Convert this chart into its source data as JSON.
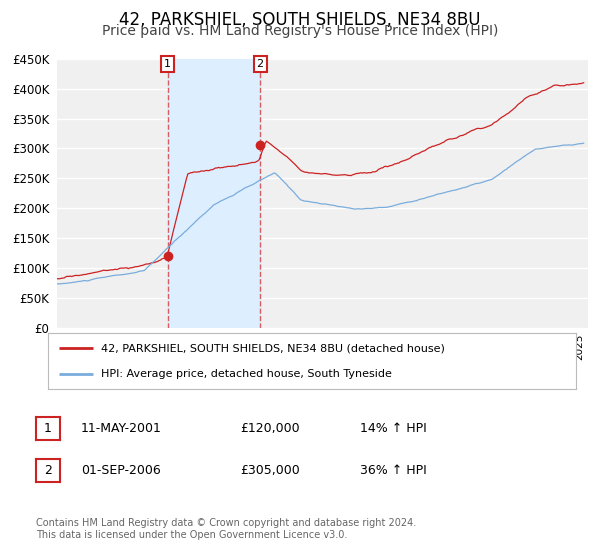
{
  "title": "42, PARKSHIEL, SOUTH SHIELDS, NE34 8BU",
  "subtitle": "Price paid vs. HM Land Registry's House Price Index (HPI)",
  "ytick_values": [
    0,
    50000,
    100000,
    150000,
    200000,
    250000,
    300000,
    350000,
    400000,
    450000
  ],
  "ylim": [
    0,
    450000
  ],
  "xlim_start": 1995.0,
  "xlim_end": 2025.5,
  "background_color": "#ffffff",
  "plot_bg_color": "#f0f0f0",
  "grid_color": "#ffffff",
  "red_line_color": "#cc2222",
  "blue_line_color": "#7aaddc",
  "shade_color": "#ddeeff",
  "marker1_date": 2001.36,
  "marker1_value": 120000,
  "marker2_date": 2006.67,
  "marker2_value": 305000,
  "vline1_x": 2001.36,
  "vline2_x": 2006.67,
  "legend_label_red": "42, PARKSHIEL, SOUTH SHIELDS, NE34 8BU (detached house)",
  "legend_label_blue": "HPI: Average price, detached house, South Tyneside",
  "table_row1": [
    "1",
    "11-MAY-2001",
    "£120,000",
    "14% ↑ HPI"
  ],
  "table_row2": [
    "2",
    "01-SEP-2006",
    "£305,000",
    "36% ↑ HPI"
  ],
  "footnote": "Contains HM Land Registry data © Crown copyright and database right 2024.\nThis data is licensed under the Open Government Licence v3.0.",
  "title_fontsize": 12,
  "subtitle_fontsize": 10
}
